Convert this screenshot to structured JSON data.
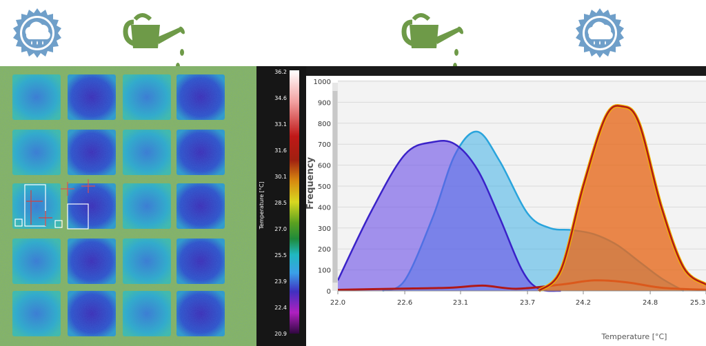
{
  "colors": {
    "icon_green": "#6e9a48",
    "rain_badge_blue": "#6f9fc9",
    "thermal_cool": "#3b2fb0",
    "thermal_warm": "#d8d630",
    "series_purple": "#6a4ee8",
    "series_cyan": "#3fb0e6",
    "series_orange": "#e66a1e",
    "series_red": "#c31a1a",
    "series_yellow_outline": "#f2b300"
  },
  "icons": {
    "left_rain": "rain-cloud-badge-icon",
    "left_can": "watering-can-icon",
    "right_can": "watering-can-icon",
    "right_rain": "rain-cloud-badge-icon"
  },
  "colorbar": {
    "label": "Temperature [°C]",
    "ticks": [
      "36.2",
      "34.6",
      "33.1",
      "31.6",
      "30.1",
      "28.5",
      "27.0",
      "25.5",
      "23.9",
      "22.4",
      "20.9"
    ]
  },
  "chart_data": {
    "type": "area",
    "xlabel": "Temperature [°C]",
    "ylabel": "Frequency",
    "xlim": [
      22.0,
      25.3
    ],
    "ylim": [
      0,
      1000
    ],
    "x_ticks": [
      "22.0",
      "22.6",
      "23.1",
      "23.7",
      "24.2",
      "24.8",
      "25.3"
    ],
    "y_ticks": [
      "0",
      "100",
      "200",
      "300",
      "400",
      "500",
      "600",
      "700",
      "800",
      "900",
      "1000"
    ],
    "grid": true,
    "series": [
      {
        "color": "#6a4ee8",
        "x": [
          22.0,
          22.3,
          22.6,
          22.85,
          23.05,
          23.25,
          23.45,
          23.65,
          23.8,
          24.0
        ],
        "y": [
          50,
          380,
          650,
          710,
          700,
          580,
          350,
          100,
          10,
          0
        ]
      },
      {
        "color": "#3fb0e6",
        "x": [
          22.4,
          22.6,
          22.85,
          23.05,
          23.25,
          23.45,
          23.7,
          23.9,
          24.1,
          24.3,
          24.5,
          24.7,
          24.9,
          25.1
        ],
        "y": [
          0,
          50,
          350,
          650,
          760,
          620,
          370,
          300,
          290,
          270,
          220,
          140,
          60,
          0
        ]
      },
      {
        "color": "#e66a1e",
        "x": [
          23.8,
          24.0,
          24.2,
          24.4,
          24.55,
          24.7,
          24.9,
          25.1,
          25.3
        ],
        "y": [
          0,
          100,
          500,
          830,
          880,
          800,
          400,
          110,
          30
        ]
      },
      {
        "color": "#c31a1a",
        "x": [
          22.0,
          22.5,
          23.0,
          23.3,
          23.6,
          24.0,
          24.3,
          24.6,
          24.9,
          25.3
        ],
        "y": [
          5,
          10,
          15,
          25,
          10,
          30,
          50,
          40,
          15,
          5
        ]
      }
    ]
  }
}
